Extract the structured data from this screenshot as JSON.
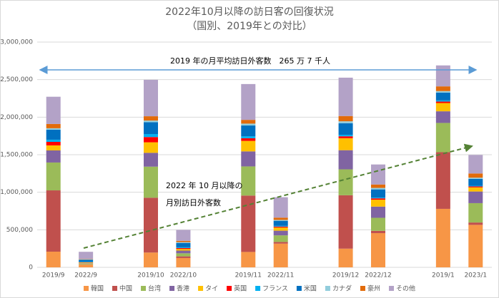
{
  "chart_data": {
    "type": "stacked-bar",
    "title": "2022年10月以降の訪日客の回復状況",
    "subtitle": "（国別、2019年との対比）",
    "annotations": [
      "2019 年の月平均訪日外客数　265 万 7 千人",
      "2022 年 10 月以降の",
      "月別訪日外客数"
    ],
    "categories": [
      "2019/9",
      "2022/9",
      null,
      "2019/10",
      "2022/10",
      null,
      "2019/11",
      "2022/11",
      null,
      "2019/12",
      "2022/12",
      null,
      "2019/1",
      "2023/1"
    ],
    "ylim": [
      0,
      3000000
    ],
    "yticks": [
      0,
      {
        "value": 500000,
        "label": "500,000"
      },
      {
        "value": 1000000,
        "label": "1,000,000"
      },
      {
        "value": 1500000,
        "label": "1,500,000"
      },
      {
        "value": 2000000,
        "label": "2,000,000"
      },
      {
        "value": 2500000,
        "label": "2,500,000"
      },
      {
        "value": 3000000,
        "label": "3,000,000"
      }
    ],
    "grid": true,
    "legend": "bottom",
    "series": [
      {
        "name": "韓国",
        "color": "#F79646",
        "values": [
          209000,
          37000,
          null,
          197000,
          124000,
          null,
          205000,
          316000,
          null,
          249000,
          456000,
          null,
          779000,
          566000
        ]
      },
      {
        "name": "中国",
        "color": "#C0504D",
        "values": [
          816000,
          3000,
          null,
          730000,
          22000,
          null,
          751000,
          22000,
          null,
          711000,
          30000,
          null,
          754000,
          31000
        ]
      },
      {
        "name": "台湾",
        "color": "#9BBB59",
        "values": [
          371000,
          10000,
          null,
          414000,
          41000,
          null,
          388000,
          88000,
          null,
          345000,
          174000,
          null,
          390000,
          258000
        ]
      },
      {
        "name": "香港",
        "color": "#8064A2",
        "values": [
          161000,
          5000,
          null,
          184000,
          36000,
          null,
          200000,
          62000,
          null,
          255000,
          149000,
          null,
          155000,
          155000
        ]
      },
      {
        "name": "タイ",
        "color": "#FFC000",
        "values": [
          67000,
          9000,
          null,
          140000,
          22000,
          null,
          140000,
          42000,
          null,
          160000,
          92000,
          null,
          110000,
          55000
        ]
      },
      {
        "name": "英国",
        "color": "#FF0000",
        "values": [
          47000,
          4000,
          null,
          70000,
          12000,
          null,
          35000,
          13000,
          null,
          25000,
          18000,
          null,
          20000,
          13000
        ]
      },
      {
        "name": "フランス",
        "color": "#00B0F0",
        "values": [
          29000,
          4000,
          null,
          40000,
          10000,
          null,
          27000,
          9000,
          null,
          20000,
          10000,
          null,
          15000,
          9000
        ]
      },
      {
        "name": "米国",
        "color": "#0070C0",
        "values": [
          133000,
          30000,
          null,
          158000,
          58000,
          null,
          143000,
          68000,
          null,
          155000,
          109000,
          null,
          104000,
          91000
        ]
      },
      {
        "name": "カナダ",
        "color": "#92CDDC",
        "values": [
          19000,
          5000,
          null,
          22000,
          11000,
          null,
          25000,
          12000,
          null,
          25000,
          20000,
          null,
          20000,
          16000
        ]
      },
      {
        "name": "豪州",
        "color": "#E26B0A",
        "values": [
          57000,
          5000,
          null,
          57000,
          17000,
          null,
          50000,
          30000,
          null,
          70000,
          45000,
          null,
          63000,
          56000
        ]
      },
      {
        "name": "その他",
        "color": "#B3A2C7",
        "values": [
          363000,
          95000,
          null,
          485000,
          146000,
          null,
          477000,
          272000,
          null,
          511000,
          267000,
          null,
          279000,
          247000
        ]
      }
    ]
  }
}
